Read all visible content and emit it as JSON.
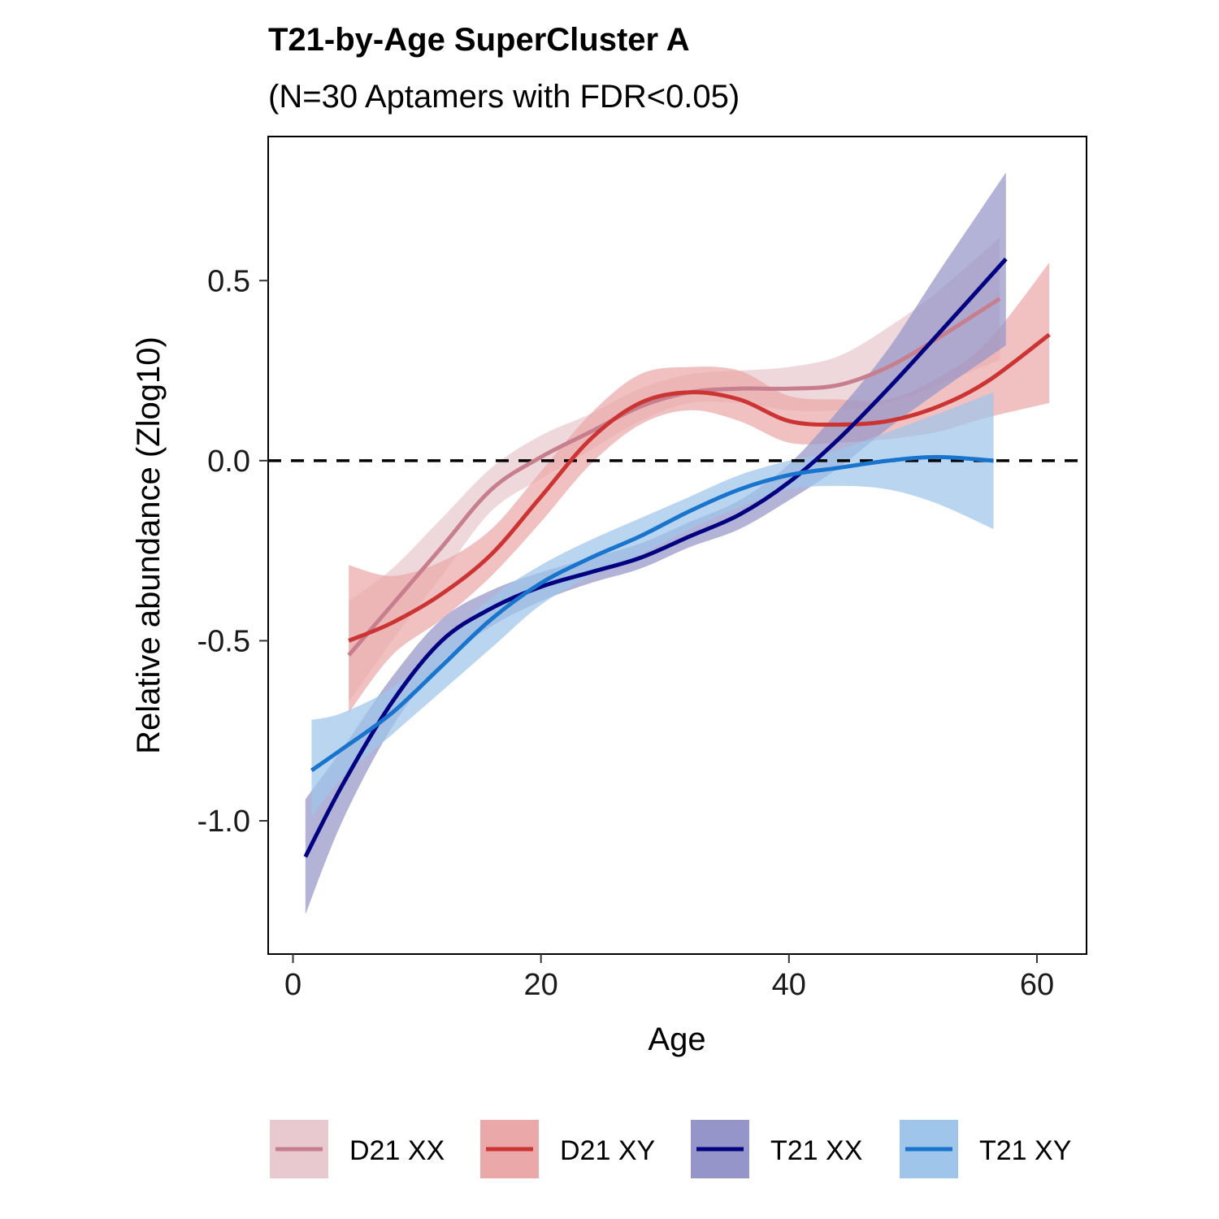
{
  "chart_data": {
    "type": "line",
    "title": "T21-by-Age SuperCluster A",
    "subtitle": "(N=30 Aptamers with FDR<0.05)",
    "xlabel": "Age",
    "ylabel": "Relative abundance (Zlog10)",
    "xlim": [
      -2,
      64
    ],
    "ylim": [
      -1.37,
      0.9
    ],
    "x_ticks": [
      0,
      20,
      40,
      60
    ],
    "x_tick_labels": [
      "0",
      "20",
      "40",
      "60"
    ],
    "y_ticks": [
      0.5,
      0.0,
      -0.5,
      -1.0
    ],
    "y_tick_labels": [
      "0.5",
      "0.0",
      "-0.5",
      "-1.0"
    ],
    "reference_line": {
      "y": 0,
      "style": "dashed"
    },
    "grid": false,
    "legend_position": "bottom",
    "series": [
      {
        "name": "D21 XX",
        "color": "#c77f8e",
        "fill": "#e7c9cf",
        "points": [
          [
            4.5,
            -0.54
          ],
          [
            8,
            -0.4
          ],
          [
            12,
            -0.24
          ],
          [
            16,
            -0.08
          ],
          [
            20,
            0.01
          ],
          [
            24,
            0.08
          ],
          [
            28,
            0.15
          ],
          [
            32,
            0.19
          ],
          [
            36,
            0.2
          ],
          [
            40,
            0.2
          ],
          [
            44,
            0.21
          ],
          [
            48,
            0.26
          ],
          [
            52,
            0.34
          ],
          [
            57,
            0.45
          ]
        ],
        "lower": [
          [
            4.5,
            -0.67
          ],
          [
            8,
            -0.5
          ],
          [
            12,
            -0.32
          ],
          [
            16,
            -0.14
          ],
          [
            20,
            -0.05
          ],
          [
            24,
            0.03
          ],
          [
            28,
            0.11
          ],
          [
            32,
            0.16
          ],
          [
            36,
            0.16
          ],
          [
            40,
            0.14
          ],
          [
            44,
            0.14
          ],
          [
            48,
            0.16
          ],
          [
            52,
            0.21
          ],
          [
            57,
            0.28
          ]
        ],
        "upper": [
          [
            4.5,
            -0.39
          ],
          [
            8,
            -0.3
          ],
          [
            12,
            -0.16
          ],
          [
            16,
            -0.02
          ],
          [
            20,
            0.07
          ],
          [
            24,
            0.13
          ],
          [
            28,
            0.2
          ],
          [
            32,
            0.24
          ],
          [
            36,
            0.25
          ],
          [
            40,
            0.26
          ],
          [
            44,
            0.29
          ],
          [
            48,
            0.37
          ],
          [
            52,
            0.47
          ],
          [
            57,
            0.62
          ]
        ]
      },
      {
        "name": "D21 XY",
        "color": "#cc3333",
        "fill": "#eba8a8",
        "points": [
          [
            4.5,
            -0.5
          ],
          [
            8,
            -0.45
          ],
          [
            12,
            -0.37
          ],
          [
            16,
            -0.26
          ],
          [
            20,
            -0.1
          ],
          [
            24,
            0.06
          ],
          [
            28,
            0.16
          ],
          [
            32,
            0.19
          ],
          [
            36,
            0.17
          ],
          [
            40,
            0.11
          ],
          [
            44,
            0.1
          ],
          [
            48,
            0.11
          ],
          [
            52,
            0.15
          ],
          [
            56,
            0.22
          ],
          [
            61,
            0.35
          ]
        ],
        "lower": [
          [
            4.5,
            -0.7
          ],
          [
            8,
            -0.54
          ],
          [
            12,
            -0.44
          ],
          [
            16,
            -0.32
          ],
          [
            20,
            -0.17
          ],
          [
            24,
            -0.01
          ],
          [
            28,
            0.1
          ],
          [
            32,
            0.14
          ],
          [
            36,
            0.11
          ],
          [
            40,
            0.05
          ],
          [
            44,
            0.05
          ],
          [
            48,
            0.06
          ],
          [
            52,
            0.08
          ],
          [
            56,
            0.12
          ],
          [
            61,
            0.16
          ]
        ],
        "upper": [
          [
            4.5,
            -0.29
          ],
          [
            8,
            -0.32
          ],
          [
            12,
            -0.28
          ],
          [
            16,
            -0.19
          ],
          [
            20,
            -0.03
          ],
          [
            24,
            0.13
          ],
          [
            28,
            0.24
          ],
          [
            32,
            0.26
          ],
          [
            36,
            0.25
          ],
          [
            40,
            0.18
          ],
          [
            44,
            0.17
          ],
          [
            48,
            0.17
          ],
          [
            52,
            0.23
          ],
          [
            56,
            0.33
          ],
          [
            61,
            0.55
          ]
        ]
      },
      {
        "name": "T21 XX",
        "color": "#000080",
        "fill": "#9595c9",
        "points": [
          [
            1,
            -1.1
          ],
          [
            4,
            -0.9
          ],
          [
            8,
            -0.67
          ],
          [
            12,
            -0.5
          ],
          [
            16,
            -0.41
          ],
          [
            20,
            -0.35
          ],
          [
            24,
            -0.31
          ],
          [
            28,
            -0.27
          ],
          [
            32,
            -0.21
          ],
          [
            36,
            -0.15
          ],
          [
            40,
            -0.06
          ],
          [
            44,
            0.06
          ],
          [
            48,
            0.2
          ],
          [
            52,
            0.35
          ],
          [
            57.5,
            0.56
          ]
        ],
        "lower": [
          [
            1,
            -1.26
          ],
          [
            4,
            -1.0
          ],
          [
            8,
            -0.74
          ],
          [
            12,
            -0.56
          ],
          [
            16,
            -0.46
          ],
          [
            20,
            -0.39
          ],
          [
            24,
            -0.34
          ],
          [
            28,
            -0.3
          ],
          [
            32,
            -0.24
          ],
          [
            36,
            -0.19
          ],
          [
            40,
            -0.11
          ],
          [
            44,
            -0.02
          ],
          [
            48,
            0.09
          ],
          [
            52,
            0.19
          ],
          [
            57.5,
            0.32
          ]
        ],
        "upper": [
          [
            1,
            -0.94
          ],
          [
            4,
            -0.8
          ],
          [
            8,
            -0.6
          ],
          [
            12,
            -0.44
          ],
          [
            16,
            -0.36
          ],
          [
            20,
            -0.31
          ],
          [
            24,
            -0.27
          ],
          [
            28,
            -0.23
          ],
          [
            32,
            -0.17
          ],
          [
            36,
            -0.11
          ],
          [
            40,
            -0.01
          ],
          [
            44,
            0.14
          ],
          [
            48,
            0.31
          ],
          [
            52,
            0.52
          ],
          [
            57.5,
            0.8
          ]
        ]
      },
      {
        "name": "T21 XY",
        "color": "#1874cd",
        "fill": "#9fc5ea",
        "points": [
          [
            1.5,
            -0.86
          ],
          [
            4,
            -0.8
          ],
          [
            8,
            -0.7
          ],
          [
            12,
            -0.57
          ],
          [
            16,
            -0.44
          ],
          [
            20,
            -0.34
          ],
          [
            24,
            -0.27
          ],
          [
            28,
            -0.21
          ],
          [
            32,
            -0.14
          ],
          [
            36,
            -0.08
          ],
          [
            40,
            -0.04
          ],
          [
            44,
            -0.02
          ],
          [
            48,
            0.0
          ],
          [
            52,
            0.01
          ],
          [
            56.5,
            0.0
          ]
        ],
        "lower": [
          [
            1.5,
            -0.99
          ],
          [
            4,
            -0.88
          ],
          [
            8,
            -0.76
          ],
          [
            12,
            -0.64
          ],
          [
            16,
            -0.52
          ],
          [
            20,
            -0.4
          ],
          [
            24,
            -0.32
          ],
          [
            28,
            -0.26
          ],
          [
            32,
            -0.19
          ],
          [
            36,
            -0.13
          ],
          [
            40,
            -0.08
          ],
          [
            44,
            -0.07
          ],
          [
            48,
            -0.08
          ],
          [
            52,
            -0.12
          ],
          [
            56.5,
            -0.19
          ]
        ],
        "upper": [
          [
            1.5,
            -0.72
          ],
          [
            4,
            -0.7
          ],
          [
            8,
            -0.63
          ],
          [
            12,
            -0.51
          ],
          [
            16,
            -0.38
          ],
          [
            20,
            -0.29
          ],
          [
            24,
            -0.22
          ],
          [
            28,
            -0.16
          ],
          [
            32,
            -0.1
          ],
          [
            36,
            -0.04
          ],
          [
            40,
            0.0
          ],
          [
            44,
            0.03
          ],
          [
            48,
            0.08
          ],
          [
            52,
            0.13
          ],
          [
            56.5,
            0.19
          ]
        ]
      }
    ]
  }
}
